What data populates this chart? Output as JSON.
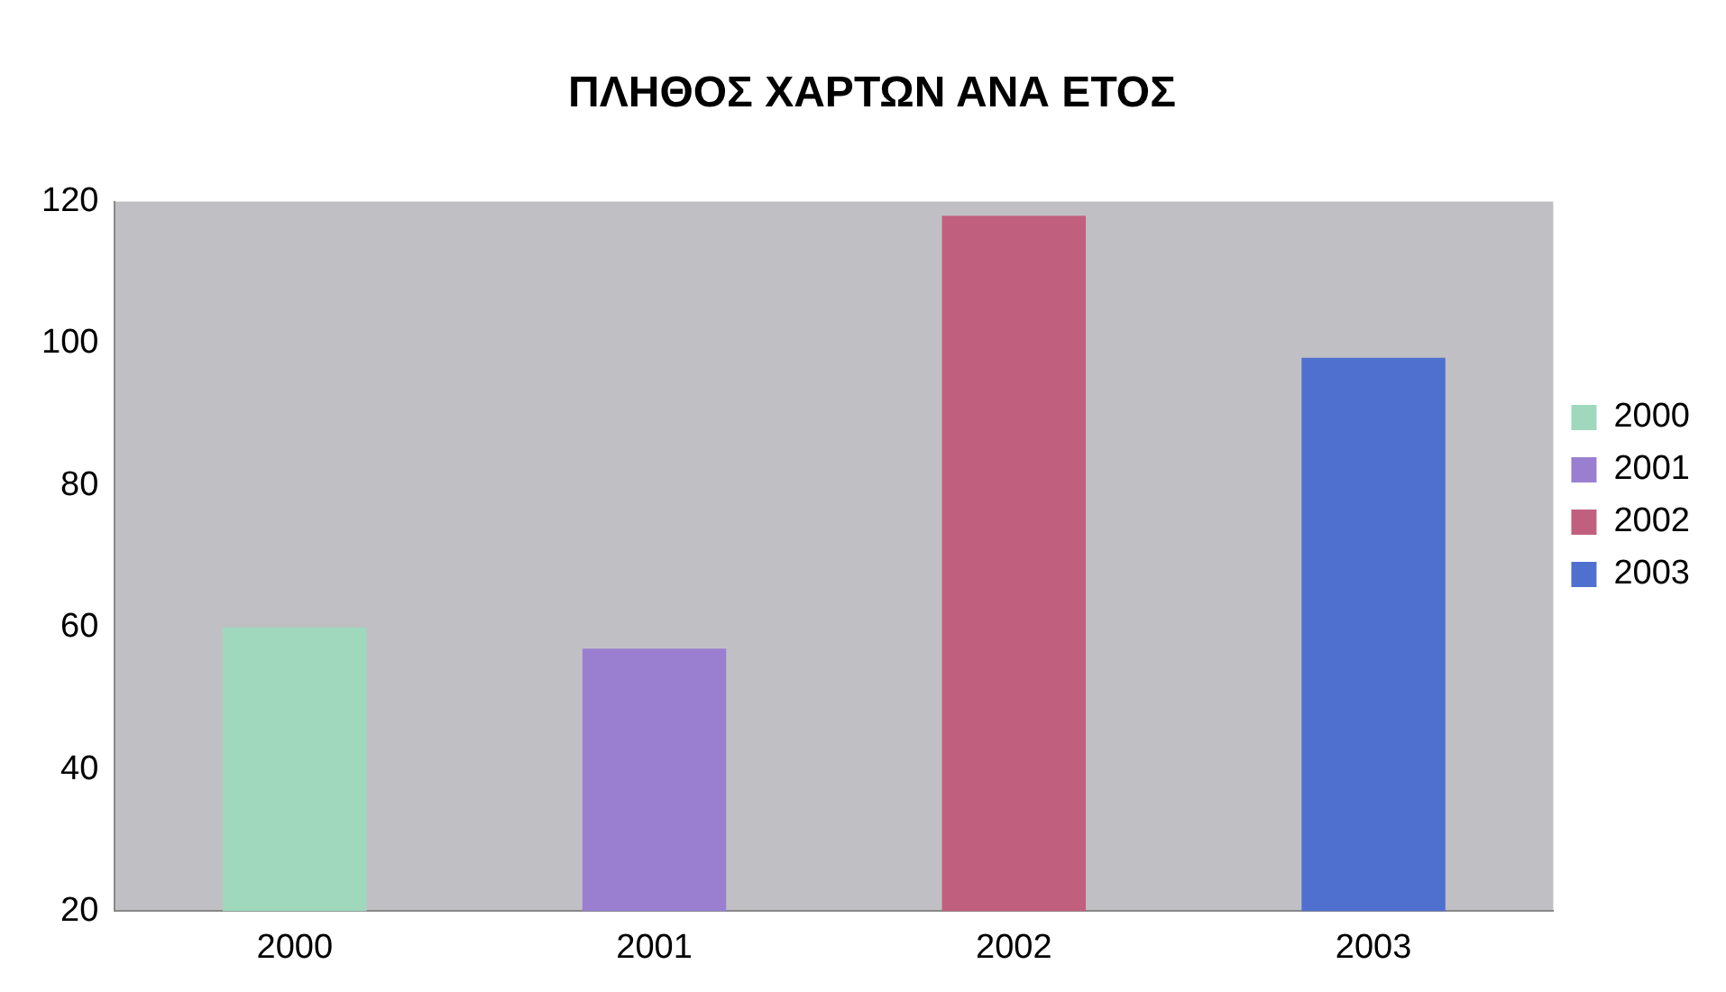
{
  "chart_data": {
    "type": "bar",
    "title": "ΠΛΗΘΟΣ ΧΑΡΤΩΝ ΑΝΑ ΕΤΟΣ",
    "categories": [
      "2000",
      "2001",
      "2002",
      "2003"
    ],
    "series": [
      {
        "name": "2000",
        "color": "#9fd8bc",
        "values": [
          60,
          null,
          null,
          null
        ]
      },
      {
        "name": "2001",
        "color": "#9a7fd0",
        "values": [
          null,
          57,
          null,
          null
        ]
      },
      {
        "name": "2002",
        "color": "#c0607e",
        "values": [
          null,
          null,
          118,
          null
        ]
      },
      {
        "name": "2003",
        "color": "#5070d0",
        "values": [
          null,
          null,
          null,
          98
        ]
      }
    ],
    "ylim": [
      20,
      120
    ],
    "yticks": [
      20,
      40,
      60,
      80,
      100,
      120
    ],
    "grid": false,
    "legend": "right"
  }
}
